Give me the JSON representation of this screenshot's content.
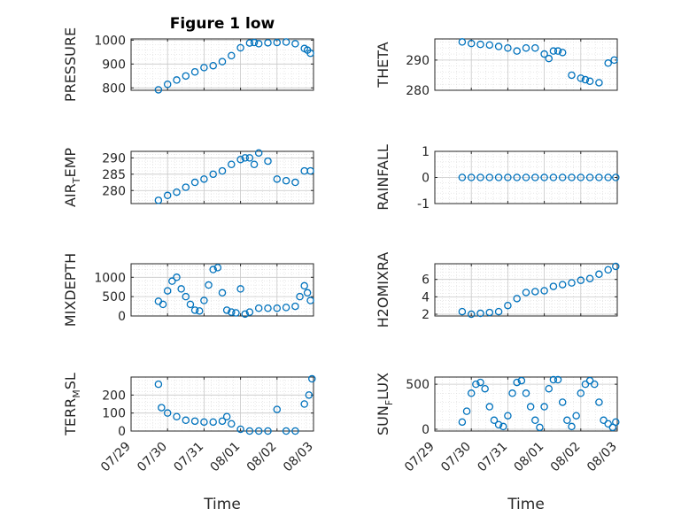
{
  "figure": {
    "title": "Figure 1 low",
    "xlabel": "Time",
    "marker_color": "#0072BD",
    "x_ticks": [
      "07/29",
      "07/30",
      "07/31",
      "08/01",
      "08/02",
      "08/03"
    ]
  },
  "chart_data": [
    {
      "type": "scatter",
      "title": "Figure 1 low",
      "ylabel": "PRESSURE",
      "xlabel": "",
      "xlim": [
        "07/29",
        "08/03"
      ],
      "ylim": [
        790,
        1005
      ],
      "yticks": [
        800,
        900,
        1000
      ],
      "grid": true,
      "x": [
        "07/29 18:00",
        "07/30 00:00",
        "07/30 06:00",
        "07/30 12:00",
        "07/30 18:00",
        "07/31 00:00",
        "07/31 06:00",
        "07/31 12:00",
        "07/31 18:00",
        "08/01 00:00",
        "08/01 06:00",
        "08/01 09:00",
        "08/01 12:00",
        "08/01 18:00",
        "08/02 00:00",
        "08/02 06:00",
        "08/02 12:00",
        "08/02 18:00",
        "08/02 20:00",
        "08/02 22:00"
      ],
      "y": [
        792,
        815,
        833,
        850,
        867,
        885,
        893,
        910,
        935,
        968,
        988,
        990,
        985,
        989,
        990,
        992,
        985,
        965,
        958,
        945
      ]
    },
    {
      "type": "scatter",
      "title": "",
      "ylabel": "THETA",
      "xlabel": "",
      "xlim": [
        "07/29",
        "08/03"
      ],
      "ylim": [
        280,
        297
      ],
      "yticks": [
        280,
        290
      ],
      "grid": true,
      "x": [
        "07/29 18:00",
        "07/30 00:00",
        "07/30 06:00",
        "07/30 12:00",
        "07/30 18:00",
        "07/31 00:00",
        "07/31 06:00",
        "07/31 12:00",
        "07/31 18:00",
        "08/01 00:00",
        "08/01 03:00",
        "08/01 06:00",
        "08/01 09:00",
        "08/01 12:00",
        "08/01 18:00",
        "08/02 00:00",
        "08/02 03:00",
        "08/02 06:00",
        "08/02 12:00",
        "08/02 18:00",
        "08/02 22:00"
      ],
      "y": [
        296,
        295.5,
        295.2,
        295,
        294.5,
        294,
        293,
        294,
        294,
        292,
        290.5,
        293,
        293,
        292.5,
        285,
        284,
        283.5,
        283,
        282.5,
        289,
        290
      ]
    },
    {
      "type": "scatter",
      "title": "",
      "ylabel": "AIR_TEMP",
      "xlabel": "",
      "xlim": [
        "07/29",
        "08/03"
      ],
      "ylim": [
        276,
        292
      ],
      "yticks": [
        280,
        285,
        290
      ],
      "grid": true,
      "x": [
        "07/29 18:00",
        "07/30 00:00",
        "07/30 06:00",
        "07/30 12:00",
        "07/30 18:00",
        "07/31 00:00",
        "07/31 06:00",
        "07/31 12:00",
        "07/31 18:00",
        "08/01 00:00",
        "08/01 03:00",
        "08/01 06:00",
        "08/01 09:00",
        "08/01 12:00",
        "08/01 18:00",
        "08/02 00:00",
        "08/02 06:00",
        "08/02 12:00",
        "08/02 18:00",
        "08/02 22:00"
      ],
      "y": [
        277,
        278.5,
        279.5,
        281,
        282.5,
        283.5,
        285,
        286,
        288,
        289.5,
        290,
        290,
        288,
        291.5,
        289,
        283.5,
        283,
        282.5,
        286,
        286
      ]
    },
    {
      "type": "scatter",
      "title": "",
      "ylabel": "RAINFALL",
      "xlabel": "",
      "xlim": [
        "07/29",
        "08/03"
      ],
      "ylim": [
        -1,
        1
      ],
      "yticks": [
        -1,
        0,
        1
      ],
      "grid": true,
      "x": [
        "07/29 18:00",
        "07/30 00:00",
        "07/30 06:00",
        "07/30 12:00",
        "07/30 18:00",
        "07/31 00:00",
        "07/31 06:00",
        "07/31 12:00",
        "07/31 18:00",
        "08/01 00:00",
        "08/01 06:00",
        "08/01 12:00",
        "08/01 18:00",
        "08/02 00:00",
        "08/02 06:00",
        "08/02 12:00",
        "08/02 18:00",
        "08/02 23:00"
      ],
      "y": [
        0,
        0,
        0,
        0,
        0,
        0,
        0,
        0,
        0,
        0,
        0,
        0,
        0,
        0,
        0,
        0,
        0,
        0
      ]
    },
    {
      "type": "scatter",
      "title": "",
      "ylabel": "MIXDEPTH",
      "xlabel": "",
      "xlim": [
        "07/29",
        "08/03"
      ],
      "ylim": [
        0,
        1350
      ],
      "yticks": [
        0,
        500,
        1000
      ],
      "grid": true,
      "x": [
        "07/29 18:00",
        "07/29 21:00",
        "07/30 00:00",
        "07/30 03:00",
        "07/30 06:00",
        "07/30 09:00",
        "07/30 12:00",
        "07/30 15:00",
        "07/30 18:00",
        "07/30 21:00",
        "07/31 00:00",
        "07/31 03:00",
        "07/31 06:00",
        "07/31 09:00",
        "07/31 12:00",
        "07/31 15:00",
        "07/31 18:00",
        "07/31 21:00",
        "08/01 00:00",
        "08/01 03:00",
        "08/01 06:00",
        "08/01 12:00",
        "08/01 18:00",
        "08/02 00:00",
        "08/02 06:00",
        "08/02 12:00",
        "08/02 15:00",
        "08/02 18:00",
        "08/02 20:00",
        "08/02 22:00"
      ],
      "y": [
        380,
        300,
        650,
        900,
        1000,
        700,
        500,
        300,
        150,
        130,
        400,
        800,
        1200,
        1250,
        600,
        150,
        100,
        80,
        700,
        50,
        100,
        200,
        200,
        200,
        220,
        250,
        500,
        780,
        600,
        400
      ]
    },
    {
      "type": "scatter",
      "title": "",
      "ylabel": "H2OMIXRA",
      "xlabel": "",
      "xlim": [
        "07/29",
        "08/03"
      ],
      "ylim": [
        1.8,
        7.8
      ],
      "yticks": [
        2,
        4,
        6
      ],
      "grid": true,
      "x": [
        "07/29 18:00",
        "07/30 00:00",
        "07/30 06:00",
        "07/30 12:00",
        "07/30 18:00",
        "07/31 00:00",
        "07/31 06:00",
        "07/31 12:00",
        "07/31 18:00",
        "08/01 00:00",
        "08/01 06:00",
        "08/01 12:00",
        "08/01 18:00",
        "08/02 00:00",
        "08/02 06:00",
        "08/02 12:00",
        "08/02 18:00",
        "08/02 23:00"
      ],
      "y": [
        2.3,
        2,
        2.1,
        2.2,
        2.3,
        3,
        3.8,
        4.5,
        4.6,
        4.7,
        5.2,
        5.4,
        5.6,
        5.9,
        6.1,
        6.6,
        7.1,
        7.5
      ]
    },
    {
      "type": "scatter",
      "title": "",
      "ylabel": "TERR_MSL",
      "xlabel": "Time",
      "xlim": [
        "07/29",
        "08/03"
      ],
      "ylim": [
        0,
        300
      ],
      "yticks": [
        0,
        100,
        200
      ],
      "grid": true,
      "x": [
        "07/29 18:00",
        "07/29 20:00",
        "07/30 00:00",
        "07/30 06:00",
        "07/30 12:00",
        "07/30 18:00",
        "07/31 00:00",
        "07/31 06:00",
        "07/31 12:00",
        "07/31 15:00",
        "07/31 18:00",
        "08/01 00:00",
        "08/01 06:00",
        "08/01 12:00",
        "08/01 18:00",
        "08/02 00:00",
        "08/02 06:00",
        "08/02 12:00",
        "08/02 18:00",
        "08/02 21:00",
        "08/02 23:00"
      ],
      "y": [
        260,
        130,
        100,
        80,
        60,
        55,
        50,
        50,
        55,
        80,
        40,
        10,
        0,
        0,
        0,
        120,
        0,
        0,
        150,
        200,
        290
      ]
    },
    {
      "type": "scatter",
      "title": "",
      "ylabel": "SUN_FLUX",
      "xlabel": "Time",
      "xlim": [
        "07/29",
        "08/03"
      ],
      "ylim": [
        -20,
        580
      ],
      "yticks": [
        0,
        500
      ],
      "grid": true,
      "x": [
        "07/29 18:00",
        "07/29 21:00",
        "07/30 00:00",
        "07/30 03:00",
        "07/30 06:00",
        "07/30 09:00",
        "07/30 12:00",
        "07/30 15:00",
        "07/30 18:00",
        "07/30 21:00",
        "07/31 00:00",
        "07/31 03:00",
        "07/31 06:00",
        "07/31 09:00",
        "07/31 12:00",
        "07/31 15:00",
        "07/31 18:00",
        "07/31 21:00",
        "08/01 00:00",
        "08/01 03:00",
        "08/01 06:00",
        "08/01 09:00",
        "08/01 12:00",
        "08/01 15:00",
        "08/01 18:00",
        "08/01 21:00",
        "08/02 00:00",
        "08/02 03:00",
        "08/02 06:00",
        "08/02 09:00",
        "08/02 12:00",
        "08/02 15:00",
        "08/02 18:00",
        "08/02 21:00",
        "08/02 23:00"
      ],
      "y": [
        80,
        200,
        400,
        500,
        520,
        450,
        250,
        100,
        50,
        30,
        150,
        400,
        520,
        540,
        400,
        250,
        100,
        20,
        250,
        450,
        550,
        550,
        300,
        100,
        30,
        150,
        400,
        500,
        540,
        500,
        300,
        100,
        60,
        20,
        80
      ]
    }
  ]
}
